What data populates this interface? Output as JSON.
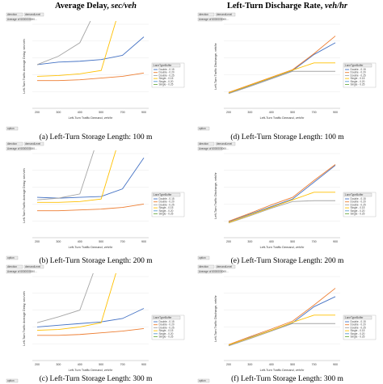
{
  "headers": {
    "left": {
      "text": "Average Delay, ",
      "unit": "sec/veh"
    },
    "right": {
      "text": "Left-Turn Discharge Rate, ",
      "unit": "veh/hr"
    }
  },
  "pivot_labels": {
    "top_field": "Average of 6000000000...",
    "field_chip_1": "direction",
    "field_chip_2": "demandLevel",
    "filter_chip": "option",
    "legend_title": "LaneTypeBuffer"
  },
  "colors": {
    "Double - 0.15": "#4472C4",
    "Double - 0.20": "#ED7D31",
    "Double - 0.25": "#A5A5A5",
    "Single - 0.15": "#FFC000",
    "Single - 0.20": "#5B9BD5",
    "Single - 0.25": "#70AD47"
  },
  "chart_data": [
    {
      "id": "a",
      "type": "line",
      "caption": {
        "text": "(a) Left-Turn Storage Length: 100 m"
      },
      "xlabel": {
        "text": "Left-Turn Traffic Demand, ",
        "unit": "veh/hr"
      },
      "ylabel": "Left-Turn Traffic Average Delay, sec/veh",
      "categories": [
        "200",
        "300",
        "400",
        "500",
        "700",
        "900"
      ],
      "series": [
        {
          "name": "Double - 0.15",
          "values": [
            52,
            55,
            56,
            58,
            63,
            85
          ]
        },
        {
          "name": "Double - 0.20",
          "values": [
            33,
            33,
            34,
            36,
            38,
            42
          ]
        },
        {
          "name": "Double - 0.25",
          "values": [
            52,
            62,
            78,
            130,
            null,
            null
          ]
        },
        {
          "name": "Single - 0.15",
          "values": [
            38,
            39,
            41,
            45,
            130,
            null
          ]
        },
        {
          "name": "Single - 0.20",
          "values": [
            null,
            null,
            null,
            null,
            null,
            null
          ]
        },
        {
          "name": "Single - 0.25",
          "values": [
            null,
            null,
            null,
            null,
            null,
            null
          ]
        }
      ],
      "legend": [
        "Double - 0.15",
        "Double - 0.20",
        "Double - 0.25",
        "Single - 0.15",
        "Single - 0.20",
        "Single - 0.25"
      ]
    },
    {
      "id": "b",
      "type": "line",
      "caption": {
        "text": "(b) Left-Turn Storage Length: 200 m"
      },
      "xlabel": {
        "text": "Left-Turn Traffic Demand, ",
        "unit": "veh/hr"
      },
      "ylabel": "Left-Turn Traffic Average Delay, sec/veh",
      "categories": [
        "200",
        "300",
        "400",
        "500",
        "700",
        "900"
      ],
      "series": [
        {
          "name": "Double - 0.15",
          "values": [
            48,
            47,
            48,
            49,
            58,
            95
          ]
        },
        {
          "name": "Double - 0.20",
          "values": [
            32,
            32,
            33,
            34,
            36,
            40
          ]
        },
        {
          "name": "Double - 0.25",
          "values": [
            45,
            47,
            52,
            130,
            null,
            null
          ]
        },
        {
          "name": "Single - 0.15",
          "values": [
            42,
            42,
            43,
            46,
            130,
            null
          ]
        },
        {
          "name": "Single - 0.20",
          "values": [
            null,
            null,
            null,
            null,
            null,
            null
          ]
        },
        {
          "name": "Single - 0.25",
          "values": [
            null,
            null,
            null,
            null,
            null,
            null
          ]
        }
      ],
      "legend": [
        "Double - 0.15",
        "Double - 0.20",
        "Double - 0.25",
        "Single - 0.15",
        "Single - 0.20",
        "Single - 0.25"
      ]
    },
    {
      "id": "c",
      "type": "line",
      "caption": {
        "text": "(c) Left-Turn Storage Length: 300 m"
      },
      "xlabel": {
        "text": "Left-Turn Traffic Demand, ",
        "unit": "veh/hr"
      },
      "ylabel": "Left-Turn Traffic Average Delay, sec/veh",
      "categories": [
        "200",
        "300",
        "400",
        "500",
        "700",
        "900"
      ],
      "series": [
        {
          "name": "Double - 0.15",
          "values": [
            40,
            42,
            44,
            46,
            50,
            62
          ]
        },
        {
          "name": "Double - 0.20",
          "values": [
            30,
            30,
            31,
            33,
            35,
            38
          ]
        },
        {
          "name": "Double - 0.25",
          "values": [
            45,
            52,
            60,
            130,
            null,
            null
          ]
        },
        {
          "name": "Single - 0.15",
          "values": [
            36,
            37,
            40,
            45,
            130,
            null
          ]
        },
        {
          "name": "Single - 0.20",
          "values": [
            null,
            null,
            null,
            null,
            null,
            null
          ]
        },
        {
          "name": "Single - 0.25",
          "values": [
            null,
            null,
            null,
            null,
            null,
            null
          ]
        }
      ],
      "legend": [
        "Double - 0.15",
        "Double - 0.20",
        "Double - 0.25",
        "Single - 0.15",
        "Single - 0.20",
        "Single - 0.25"
      ]
    },
    {
      "id": "d",
      "type": "line",
      "caption": {
        "text": "(d) Left-Turn Storage Length: 100 m"
      },
      "xlabel": {
        "text": "Left-Turn Traffic Demand, ",
        "unit": "veh/hr"
      },
      "ylabel": "Left-Turn Traffic Discharge, veh/hr",
      "categories": [
        "200",
        "300",
        "400",
        "500",
        "700",
        "900"
      ],
      "series": [
        {
          "name": "Double - 0.15",
          "values": [
            180,
            270,
            360,
            450,
            640,
            780
          ]
        },
        {
          "name": "Double - 0.20",
          "values": [
            190,
            280,
            370,
            460,
            650,
            860
          ]
        },
        {
          "name": "Double - 0.25",
          "values": [
            175,
            260,
            350,
            440,
            440,
            440
          ]
        },
        {
          "name": "Single - 0.15",
          "values": [
            185,
            275,
            365,
            455,
            540,
            540
          ]
        },
        {
          "name": "Single - 0.20",
          "values": [
            null,
            null,
            null,
            null,
            null,
            null
          ]
        },
        {
          "name": "Single - 0.25",
          "values": [
            null,
            null,
            null,
            null,
            null,
            null
          ]
        }
      ],
      "legend": [
        "Double - 0.15",
        "Double - 0.20",
        "Double - 0.25",
        "Single - 0.15",
        "Single - 0.20",
        "Single - 0.25"
      ]
    },
    {
      "id": "e",
      "type": "line",
      "caption": {
        "text": "(e) Left-Turn Storage Length: 200 m"
      },
      "xlabel": {
        "text": "Left-Turn Traffic Demand, ",
        "unit": "veh/hr"
      },
      "ylabel": "Left-Turn Traffic Discharge, veh/hr",
      "categories": [
        "200",
        "300",
        "400",
        "500",
        "700",
        "900"
      ],
      "series": [
        {
          "name": "Double - 0.15",
          "values": [
            190,
            280,
            370,
            460,
            660,
            860
          ]
        },
        {
          "name": "Double - 0.20",
          "values": [
            195,
            290,
            390,
            480,
            680,
            870
          ]
        },
        {
          "name": "Double - 0.25",
          "values": [
            175,
            260,
            350,
            430,
            440,
            440
          ]
        },
        {
          "name": "Single - 0.15",
          "values": [
            180,
            270,
            360,
            450,
            540,
            540
          ]
        },
        {
          "name": "Single - 0.20",
          "values": [
            null,
            null,
            null,
            null,
            null,
            null
          ]
        },
        {
          "name": "Single - 0.25",
          "values": [
            null,
            null,
            null,
            null,
            null,
            null
          ]
        }
      ],
      "legend": [
        "Double - 0.15",
        "Double - 0.20",
        "Double - 0.25",
        "Single - 0.15",
        "Single - 0.20",
        "Single - 0.25"
      ]
    },
    {
      "id": "f",
      "type": "line",
      "caption": {
        "text": "(f) Left-Turn Storage Length: 300 m"
      },
      "xlabel": {
        "text": "Left-Turn Traffic Demand, ",
        "unit": "veh/hr"
      },
      "ylabel": "Left-Turn Traffic Discharge, veh/hr",
      "categories": [
        "200",
        "300",
        "400",
        "500",
        "700",
        "900"
      ],
      "series": [
        {
          "name": "Double - 0.15",
          "values": [
            180,
            275,
            360,
            450,
            640,
            760
          ]
        },
        {
          "name": "Double - 0.20",
          "values": [
            190,
            285,
            375,
            470,
            660,
            860
          ]
        },
        {
          "name": "Double - 0.25",
          "values": [
            175,
            260,
            350,
            440,
            440,
            440
          ]
        },
        {
          "name": "Single - 0.15",
          "values": [
            185,
            270,
            360,
            455,
            540,
            540
          ]
        },
        {
          "name": "Single - 0.20",
          "values": [
            null,
            null,
            null,
            null,
            null,
            null
          ]
        },
        {
          "name": "Single - 0.25",
          "values": [
            null,
            null,
            null,
            null,
            null,
            null
          ]
        }
      ],
      "legend": [
        "Double - 0.15",
        "Double - 0.20",
        "Double - 0.25",
        "Single - 0.15",
        "Single - 0.20",
        "Single - 0.25"
      ]
    }
  ]
}
